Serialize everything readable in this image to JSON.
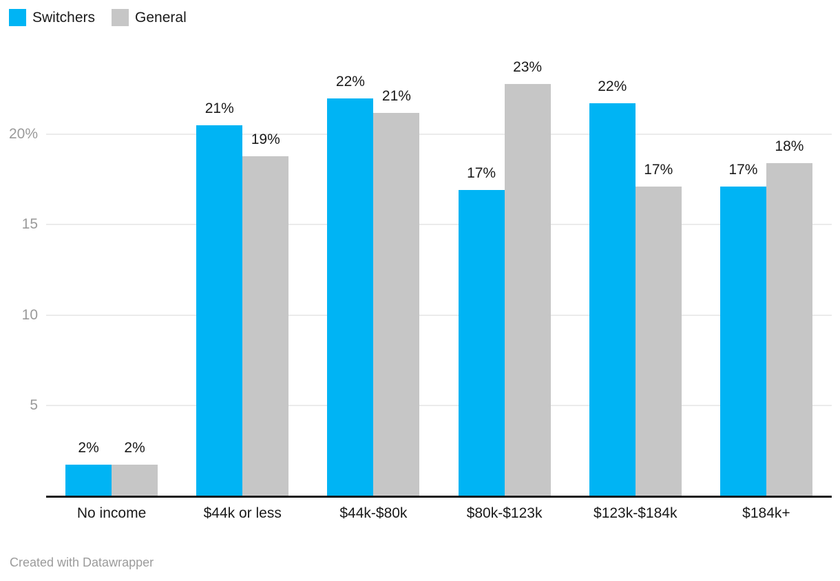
{
  "chart_data": {
    "type": "bar",
    "categories": [
      "No income",
      "$44k or less",
      "$44k-$80k",
      "$80k-$123k",
      "$123k-$184k",
      "$184k+"
    ],
    "series": [
      {
        "name": "Switchers",
        "color": "#00b4f4",
        "values": [
          1.7,
          20.5,
          22.0,
          16.9,
          21.7,
          17.1
        ],
        "data_labels": [
          "2%",
          "21%",
          "22%",
          "17%",
          "22%",
          "17%"
        ]
      },
      {
        "name": "General",
        "color": "#c6c6c6",
        "values": [
          1.7,
          18.8,
          21.2,
          22.8,
          17.1,
          18.4
        ],
        "data_labels": [
          "2%",
          "19%",
          "21%",
          "23%",
          "17%",
          "18%"
        ]
      }
    ],
    "y_axis": {
      "ticks": [
        {
          "value": 5,
          "label": "5"
        },
        {
          "value": 10,
          "label": "10"
        },
        {
          "value": 15,
          "label": "15"
        },
        {
          "value": 20,
          "label": "20%"
        }
      ],
      "range": [
        0,
        23.8
      ]
    },
    "grid": true,
    "legend_position": "top-left",
    "value_labels_shown": true
  },
  "colors": {
    "switchers": "#00b4f4",
    "general": "#c6c6c6",
    "gridline": "#ebebeb",
    "axis_line": "#141414",
    "tick_label": "#9a9a9a",
    "value_label": "#1a1a1a",
    "category_label": "#1a1a1a",
    "footer_text": "#9b9b9b"
  },
  "footer": {
    "credit": "Created with Datawrapper"
  }
}
